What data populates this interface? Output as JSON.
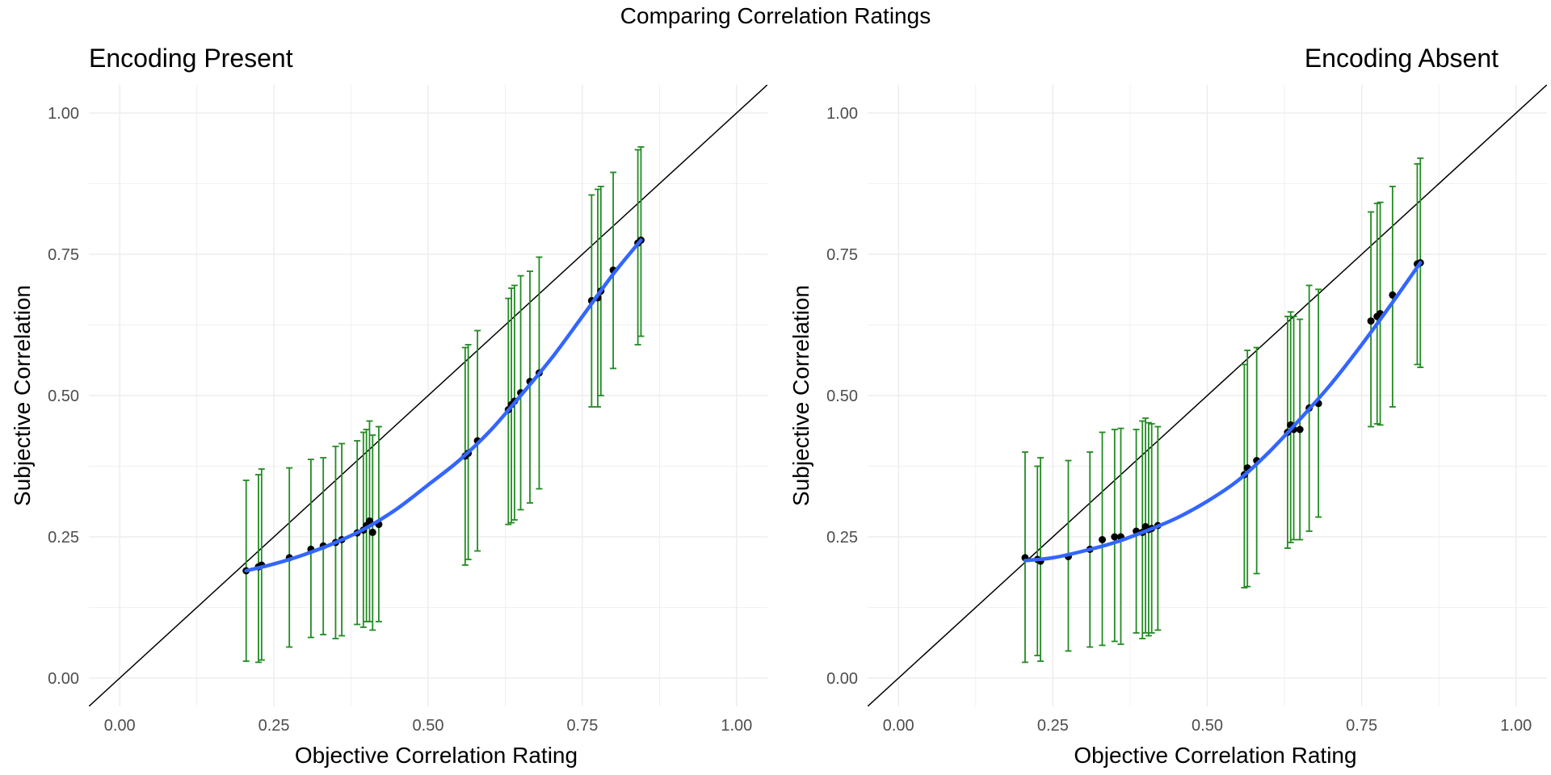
{
  "title": "Comparing Correlation Ratings",
  "colors": {
    "smooth": "#3366FF",
    "errorbar": "#228B22",
    "point": "#000000",
    "identity": "#000000",
    "grid": "#EBEBEB"
  },
  "chart_data": [
    {
      "type": "scatter",
      "title": "Encoding Present",
      "xlabel": "Objective Correlation Rating",
      "ylabel": "Subjective Correlation",
      "xlim": [
        -0.05,
        1.05
      ],
      "ylim": [
        -0.05,
        1.05
      ],
      "xticks": [
        "0.00",
        "0.25",
        "0.50",
        "0.75",
        "1.00"
      ],
      "yticks": [
        "0.00",
        "0.25",
        "0.50",
        "0.75",
        "1.00"
      ],
      "grid": true,
      "reference_line": "y = x",
      "points": [
        {
          "x": 0.205,
          "y": 0.19,
          "lo": 0.03,
          "hi": 0.35
        },
        {
          "x": 0.225,
          "y": 0.197,
          "lo": 0.028,
          "hi": 0.36
        },
        {
          "x": 0.23,
          "y": 0.2,
          "lo": 0.032,
          "hi": 0.37
        },
        {
          "x": 0.275,
          "y": 0.213,
          "lo": 0.055,
          "hi": 0.372
        },
        {
          "x": 0.31,
          "y": 0.228,
          "lo": 0.072,
          "hi": 0.387
        },
        {
          "x": 0.33,
          "y": 0.234,
          "lo": 0.077,
          "hi": 0.39
        },
        {
          "x": 0.35,
          "y": 0.24,
          "lo": 0.07,
          "hi": 0.41
        },
        {
          "x": 0.36,
          "y": 0.245,
          "lo": 0.075,
          "hi": 0.415
        },
        {
          "x": 0.385,
          "y": 0.257,
          "lo": 0.095,
          "hi": 0.42
        },
        {
          "x": 0.395,
          "y": 0.262,
          "lo": 0.09,
          "hi": 0.435
        },
        {
          "x": 0.4,
          "y": 0.27,
          "lo": 0.1,
          "hi": 0.44
        },
        {
          "x": 0.405,
          "y": 0.278,
          "lo": 0.1,
          "hi": 0.455
        },
        {
          "x": 0.41,
          "y": 0.258,
          "lo": 0.085,
          "hi": 0.43
        },
        {
          "x": 0.42,
          "y": 0.272,
          "lo": 0.1,
          "hi": 0.445
        },
        {
          "x": 0.56,
          "y": 0.393,
          "lo": 0.2,
          "hi": 0.585
        },
        {
          "x": 0.565,
          "y": 0.398,
          "lo": 0.21,
          "hi": 0.59
        },
        {
          "x": 0.58,
          "y": 0.42,
          "lo": 0.225,
          "hi": 0.615
        },
        {
          "x": 0.63,
          "y": 0.475,
          "lo": 0.272,
          "hi": 0.672
        },
        {
          "x": 0.635,
          "y": 0.484,
          "lo": 0.275,
          "hi": 0.69
        },
        {
          "x": 0.64,
          "y": 0.49,
          "lo": 0.28,
          "hi": 0.695
        },
        {
          "x": 0.65,
          "y": 0.505,
          "lo": 0.298,
          "hi": 0.712
        },
        {
          "x": 0.665,
          "y": 0.525,
          "lo": 0.31,
          "hi": 0.72
        },
        {
          "x": 0.68,
          "y": 0.54,
          "lo": 0.335,
          "hi": 0.745
        },
        {
          "x": 0.765,
          "y": 0.668,
          "lo": 0.48,
          "hi": 0.855
        },
        {
          "x": 0.775,
          "y": 0.673,
          "lo": 0.48,
          "hi": 0.865
        },
        {
          "x": 0.78,
          "y": 0.685,
          "lo": 0.5,
          "hi": 0.87
        },
        {
          "x": 0.8,
          "y": 0.722,
          "lo": 0.548,
          "hi": 0.895
        },
        {
          "x": 0.84,
          "y": 0.77,
          "lo": 0.59,
          "hi": 0.935
        },
        {
          "x": 0.845,
          "y": 0.775,
          "lo": 0.605,
          "hi": 0.94
        }
      ],
      "smooth": [
        {
          "x": 0.205,
          "y": 0.19
        },
        {
          "x": 0.25,
          "y": 0.202
        },
        {
          "x": 0.3,
          "y": 0.219
        },
        {
          "x": 0.35,
          "y": 0.24
        },
        {
          "x": 0.4,
          "y": 0.266
        },
        {
          "x": 0.45,
          "y": 0.3
        },
        {
          "x": 0.5,
          "y": 0.342
        },
        {
          "x": 0.55,
          "y": 0.385
        },
        {
          "x": 0.6,
          "y": 0.437
        },
        {
          "x": 0.65,
          "y": 0.5
        },
        {
          "x": 0.7,
          "y": 0.566
        },
        {
          "x": 0.75,
          "y": 0.64
        },
        {
          "x": 0.8,
          "y": 0.715
        },
        {
          "x": 0.845,
          "y": 0.775
        }
      ]
    },
    {
      "type": "scatter",
      "title": "Encoding Absent",
      "xlabel": "Objective Correlation Rating",
      "ylabel": "Subjective Correlation",
      "xlim": [
        -0.05,
        1.05
      ],
      "ylim": [
        -0.05,
        1.05
      ],
      "xticks": [
        "0.00",
        "0.25",
        "0.50",
        "0.75",
        "1.00"
      ],
      "yticks": [
        "0.00",
        "0.25",
        "0.50",
        "0.75",
        "1.00"
      ],
      "grid": true,
      "reference_line": "y = x",
      "points": [
        {
          "x": 0.205,
          "y": 0.213,
          "lo": 0.028,
          "hi": 0.4
        },
        {
          "x": 0.225,
          "y": 0.21,
          "lo": 0.04,
          "hi": 0.375
        },
        {
          "x": 0.23,
          "y": 0.207,
          "lo": 0.03,
          "hi": 0.39
        },
        {
          "x": 0.275,
          "y": 0.215,
          "lo": 0.048,
          "hi": 0.385
        },
        {
          "x": 0.31,
          "y": 0.228,
          "lo": 0.055,
          "hi": 0.4
        },
        {
          "x": 0.33,
          "y": 0.245,
          "lo": 0.058,
          "hi": 0.435
        },
        {
          "x": 0.35,
          "y": 0.25,
          "lo": 0.065,
          "hi": 0.44
        },
        {
          "x": 0.36,
          "y": 0.25,
          "lo": 0.06,
          "hi": 0.442
        },
        {
          "x": 0.385,
          "y": 0.26,
          "lo": 0.08,
          "hi": 0.44
        },
        {
          "x": 0.395,
          "y": 0.258,
          "lo": 0.07,
          "hi": 0.455
        },
        {
          "x": 0.4,
          "y": 0.268,
          "lo": 0.08,
          "hi": 0.46
        },
        {
          "x": 0.405,
          "y": 0.263,
          "lo": 0.075,
          "hi": 0.452
        },
        {
          "x": 0.41,
          "y": 0.265,
          "lo": 0.08,
          "hi": 0.45
        },
        {
          "x": 0.42,
          "y": 0.27,
          "lo": 0.085,
          "hi": 0.445
        },
        {
          "x": 0.56,
          "y": 0.36,
          "lo": 0.16,
          "hi": 0.555
        },
        {
          "x": 0.565,
          "y": 0.372,
          "lo": 0.162,
          "hi": 0.58
        },
        {
          "x": 0.58,
          "y": 0.385,
          "lo": 0.185,
          "hi": 0.585
        },
        {
          "x": 0.63,
          "y": 0.435,
          "lo": 0.23,
          "hi": 0.64
        },
        {
          "x": 0.635,
          "y": 0.448,
          "lo": 0.24,
          "hi": 0.648
        },
        {
          "x": 0.64,
          "y": 0.44,
          "lo": 0.245,
          "hi": 0.64
        },
        {
          "x": 0.65,
          "y": 0.44,
          "lo": 0.245,
          "hi": 0.635
        },
        {
          "x": 0.665,
          "y": 0.478,
          "lo": 0.26,
          "hi": 0.695
        },
        {
          "x": 0.68,
          "y": 0.486,
          "lo": 0.285,
          "hi": 0.688
        },
        {
          "x": 0.765,
          "y": 0.632,
          "lo": 0.445,
          "hi": 0.825
        },
        {
          "x": 0.775,
          "y": 0.64,
          "lo": 0.45,
          "hi": 0.84
        },
        {
          "x": 0.78,
          "y": 0.645,
          "lo": 0.448,
          "hi": 0.842
        },
        {
          "x": 0.8,
          "y": 0.678,
          "lo": 0.48,
          "hi": 0.87
        },
        {
          "x": 0.84,
          "y": 0.733,
          "lo": 0.555,
          "hi": 0.91
        },
        {
          "x": 0.845,
          "y": 0.735,
          "lo": 0.55,
          "hi": 0.92
        }
      ],
      "smooth": [
        {
          "x": 0.205,
          "y": 0.208
        },
        {
          "x": 0.25,
          "y": 0.213
        },
        {
          "x": 0.3,
          "y": 0.225
        },
        {
          "x": 0.35,
          "y": 0.24
        },
        {
          "x": 0.4,
          "y": 0.26
        },
        {
          "x": 0.45,
          "y": 0.283
        },
        {
          "x": 0.5,
          "y": 0.313
        },
        {
          "x": 0.55,
          "y": 0.35
        },
        {
          "x": 0.6,
          "y": 0.4
        },
        {
          "x": 0.65,
          "y": 0.458
        },
        {
          "x": 0.7,
          "y": 0.52
        },
        {
          "x": 0.75,
          "y": 0.59
        },
        {
          "x": 0.8,
          "y": 0.665
        },
        {
          "x": 0.845,
          "y": 0.735
        }
      ]
    }
  ]
}
